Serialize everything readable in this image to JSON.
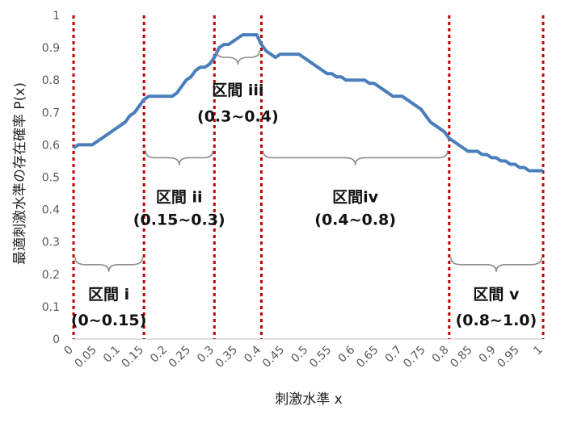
{
  "chart_data": {
    "type": "line",
    "xlabel": "刺激水準 x",
    "ylabel": "最適刺激水準の存在確率 P(x)",
    "xlim": [
      0,
      1
    ],
    "ylim": [
      0,
      1
    ],
    "grid": false,
    "yticks": [
      "0",
      "0.1",
      "0.2",
      "0.3",
      "0.4",
      "0.5",
      "0.6",
      "0.7",
      "0.8",
      "0.9",
      "1"
    ],
    "xticks": [
      "0",
      "0.05",
      "0.1",
      "0.15",
      "0.2",
      "0.25",
      "0.3",
      "0.35",
      "0.4",
      "0.45",
      "0.5",
      "0.55",
      "0.6",
      "0.65",
      "0.7",
      "0.75",
      "0.8",
      "0.85",
      "0.9",
      "0.95",
      "1"
    ],
    "series": [
      {
        "color": "#4a7ebb",
        "x": [
          0,
          0.01,
          0.02,
          0.03,
          0.04,
          0.05,
          0.06,
          0.07,
          0.08,
          0.09,
          0.1,
          0.11,
          0.12,
          0.13,
          0.14,
          0.15,
          0.16,
          0.17,
          0.18,
          0.19,
          0.2,
          0.21,
          0.22,
          0.23,
          0.24,
          0.25,
          0.26,
          0.27,
          0.28,
          0.29,
          0.3,
          0.31,
          0.32,
          0.33,
          0.34,
          0.35,
          0.36,
          0.37,
          0.38,
          0.39,
          0.4,
          0.41,
          0.42,
          0.43,
          0.44,
          0.45,
          0.46,
          0.47,
          0.48,
          0.49,
          0.5,
          0.51,
          0.52,
          0.53,
          0.54,
          0.55,
          0.56,
          0.57,
          0.58,
          0.59,
          0.6,
          0.61,
          0.62,
          0.63,
          0.64,
          0.65,
          0.66,
          0.67,
          0.68,
          0.69,
          0.7,
          0.71,
          0.72,
          0.73,
          0.74,
          0.75,
          0.76,
          0.77,
          0.78,
          0.79,
          0.8,
          0.81,
          0.82,
          0.83,
          0.84,
          0.85,
          0.86,
          0.87,
          0.88,
          0.89,
          0.9,
          0.91,
          0.92,
          0.93,
          0.94,
          0.95,
          0.96,
          0.97,
          0.98,
          0.99,
          1.0
        ],
        "values": [
          0.59,
          0.6,
          0.6,
          0.6,
          0.6,
          0.61,
          0.62,
          0.63,
          0.64,
          0.65,
          0.66,
          0.67,
          0.69,
          0.7,
          0.72,
          0.74,
          0.75,
          0.75,
          0.75,
          0.75,
          0.75,
          0.75,
          0.76,
          0.78,
          0.8,
          0.81,
          0.83,
          0.84,
          0.84,
          0.85,
          0.87,
          0.9,
          0.91,
          0.91,
          0.92,
          0.93,
          0.94,
          0.94,
          0.94,
          0.94,
          0.91,
          0.89,
          0.88,
          0.87,
          0.88,
          0.88,
          0.88,
          0.88,
          0.88,
          0.87,
          0.86,
          0.85,
          0.84,
          0.83,
          0.82,
          0.82,
          0.81,
          0.81,
          0.8,
          0.8,
          0.8,
          0.8,
          0.8,
          0.79,
          0.79,
          0.78,
          0.77,
          0.76,
          0.75,
          0.75,
          0.75,
          0.74,
          0.73,
          0.72,
          0.71,
          0.69,
          0.67,
          0.66,
          0.65,
          0.64,
          0.62,
          0.61,
          0.6,
          0.59,
          0.58,
          0.58,
          0.58,
          0.57,
          0.57,
          0.56,
          0.56,
          0.55,
          0.55,
          0.54,
          0.54,
          0.53,
          0.53,
          0.52,
          0.52,
          0.52,
          0.52
        ]
      }
    ],
    "dividers": {
      "x": [
        0,
        0.15,
        0.3,
        0.4,
        0.8,
        1.0
      ],
      "color": "#c00000",
      "style": "dotted"
    },
    "intervals": [
      {
        "name": "区間 i",
        "range": "(0~0.15)",
        "x0": 0,
        "x1": 0.15,
        "brace_y": 0.23,
        "label_y": 0.14,
        "range_y": 0.06
      },
      {
        "name": "区間 ii",
        "range": "(0.15~0.3)",
        "x0": 0.15,
        "x1": 0.3,
        "brace_y": 0.56,
        "label_y": 0.44,
        "range_y": 0.37
      },
      {
        "name": "区間 iii",
        "range": "(0.3~0.4)",
        "x0": 0.3,
        "x1": 0.4,
        "brace_y": 0.87,
        "label_y": 0.77,
        "range_y": 0.69
      },
      {
        "name": "区間iv",
        "range": "(0.4~0.8)",
        "x0": 0.4,
        "x1": 0.8,
        "brace_y": 0.56,
        "label_y": 0.44,
        "range_y": 0.37
      },
      {
        "name": "区間 v",
        "range": "(0.8~1.0)",
        "x0": 0.8,
        "x1": 1.0,
        "brace_y": 0.23,
        "label_y": 0.14,
        "range_y": 0.06
      }
    ]
  }
}
